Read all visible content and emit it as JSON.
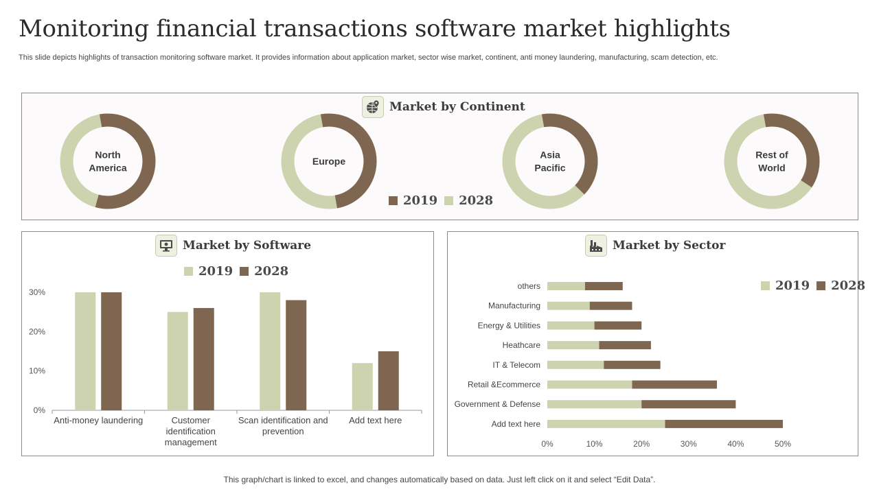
{
  "page": {
    "title": "Monitoring financial transactions software market highlights",
    "subtitle": "This slide depicts highlights of transaction monitoring software market. It provides information about application market, sector wise market, continent, anti money laundering, manufacturing, scam detection, etc.",
    "footer": "This graph/chart is linked to excel,  and changes automatically based on data. Just left click on it and select “Edit Data”."
  },
  "colors": {
    "c2019": "#7f6650",
    "c2028": "#cdd3ae",
    "icon_dark": "#4a4a4a"
  },
  "continent_panel": {
    "title": "Market by Continent",
    "icon": "globe-location-icon",
    "legend": [
      "2019",
      "2028"
    ],
    "donuts": [
      {
        "label_lines": [
          "North",
          "America"
        ],
        "share_2019": 0.57,
        "share_2028": 0.43
      },
      {
        "label_lines": [
          "Europe"
        ],
        "share_2019": 0.5,
        "share_2028": 0.5
      },
      {
        "label_lines": [
          "Asia",
          "Pacific"
        ],
        "share_2019": 0.4,
        "share_2028": 0.6
      },
      {
        "label_lines": [
          "Rest of",
          "World"
        ],
        "share_2019": 0.37,
        "share_2028": 0.63
      }
    ]
  },
  "software_panel": {
    "title": "Market by Software",
    "icon": "monitor-icon",
    "legend": [
      "2019",
      "2028"
    ]
  },
  "sector_panel": {
    "title": "Market by Sector",
    "icon": "factory-icon",
    "legend": [
      "2019",
      "2028"
    ]
  },
  "chart_data": [
    {
      "type": "bar",
      "title": "Market by Software",
      "categories": [
        [
          "Anti-money laundering"
        ],
        [
          "Customer",
          "identification",
          "management"
        ],
        [
          "Scan identification and",
          "prevention"
        ],
        [
          "Add text here"
        ]
      ],
      "series": [
        {
          "name": "2019",
          "values": [
            30,
            25,
            30,
            12
          ]
        },
        {
          "name": "2028",
          "values": [
            30,
            26,
            28,
            15
          ]
        }
      ],
      "ylim": [
        0,
        30
      ],
      "yticks": [
        "0%",
        "10%",
        "20%",
        "30%"
      ],
      "ytick_values": [
        0,
        10,
        20,
        30
      ],
      "xlabel": "",
      "ylabel": ""
    },
    {
      "type": "bar",
      "orientation": "horizontal",
      "stacked": true,
      "title": "Market by Sector",
      "categories": [
        "others",
        "Manufacturing",
        "Energy & Utilities",
        "Heathcare",
        "IT & Telecom",
        "Retail &Ecommerce",
        "Government & Defense",
        "Add text here"
      ],
      "series": [
        {
          "name": "2019",
          "values": [
            8,
            9,
            10,
            11,
            12,
            18,
            20,
            25
          ]
        },
        {
          "name": "2028",
          "values": [
            8,
            9,
            10,
            11,
            12,
            18,
            20,
            25
          ]
        }
      ],
      "xlim": [
        0,
        50
      ],
      "xticks": [
        "0%",
        "10%",
        "20%",
        "30%",
        "40%",
        "50%"
      ],
      "xtick_values": [
        0,
        10,
        20,
        30,
        40,
        50
      ],
      "xlabel": "",
      "ylabel": ""
    }
  ]
}
